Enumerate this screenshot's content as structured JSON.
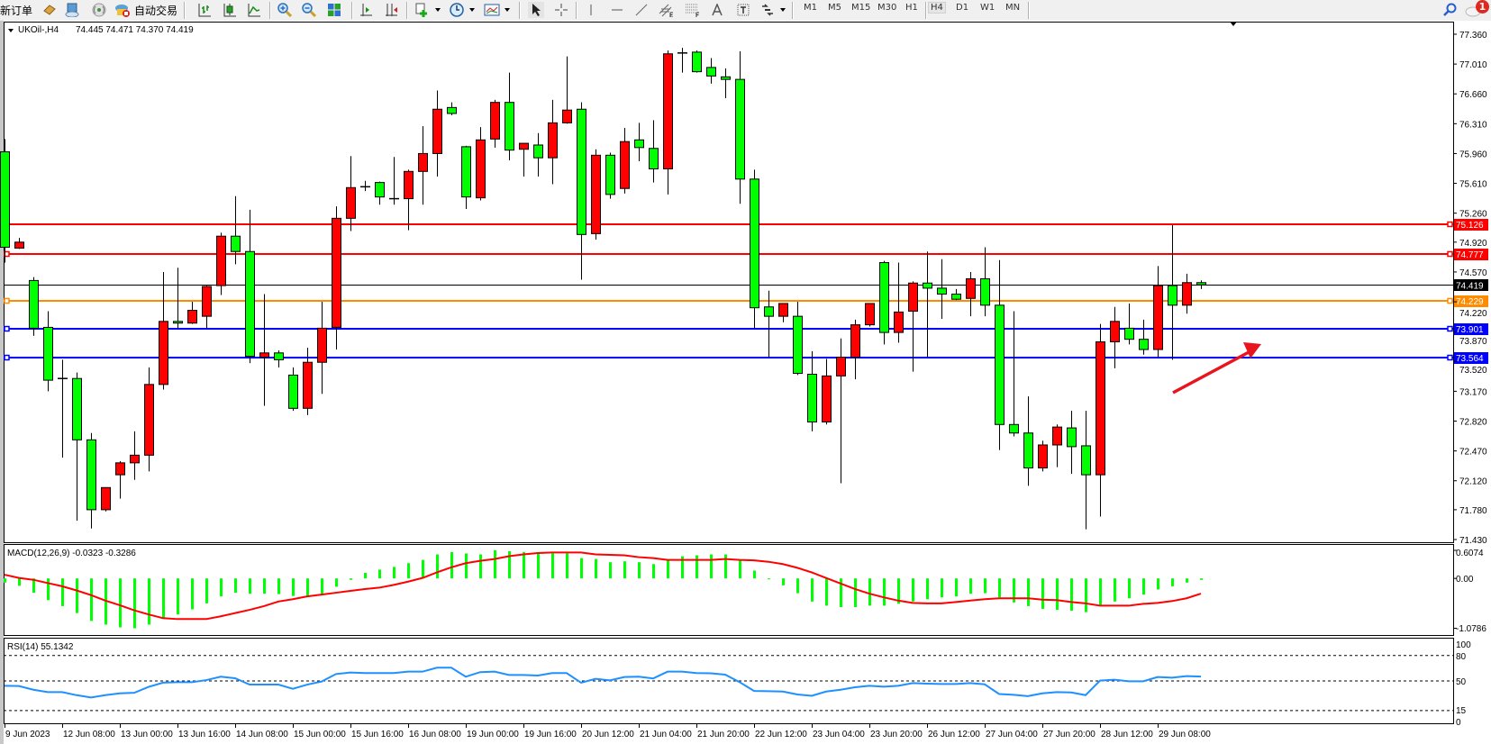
{
  "toolbar": {
    "new_order": "新订单",
    "auto_trade": "自动交易",
    "timeframes": [
      "M1",
      "M5",
      "M15",
      "M30",
      "H1",
      "H4",
      "D1",
      "W1",
      "MN"
    ],
    "active_timeframe": "H4",
    "notification_count": "1",
    "icons": [
      "book-icon",
      "market-watch-icon",
      "signals-icon",
      "auto-trade-icon",
      "bar-chart-icon",
      "candlestick-icon",
      "line-chart-icon",
      "zoom-in-icon",
      "zoom-out-icon",
      "tile-windows-icon",
      "auto-scroll-icon",
      "chart-shift-icon",
      "indicators-icon",
      "period-clock-icon",
      "templates-icon",
      "cursor-icon",
      "crosshair-icon",
      "vertical-line-icon",
      "horizontal-line-icon",
      "trendline-icon",
      "equidistant-channel-icon",
      "fibonacci-icon",
      "text-icon",
      "text-label-icon",
      "arrows-icon",
      "search-icon",
      "chat-icon"
    ]
  },
  "chart": {
    "symbol": "UKOil-,H4",
    "ohlc_readout": "74.445 74.471 74.370 74.419",
    "bid": "74.419",
    "levels": [
      {
        "price": "75.126",
        "color": "#ff0000"
      },
      {
        "price": "74.777",
        "color": "#ff0000"
      },
      {
        "price": "74.229",
        "color": "#ff8c00"
      },
      {
        "price": "73.901",
        "color": "#0000ff"
      },
      {
        "price": "73.564",
        "color": "#0000ff"
      }
    ],
    "annotation_arrow_color": "#e8141e"
  },
  "chart_data": {
    "type": "candlestick",
    "bull_color": "#ff0000",
    "bear_color": "#00ff00",
    "ylim": [
      71.43,
      77.36
    ],
    "price_ticks": [
      "77.360",
      "77.010",
      "76.660",
      "76.310",
      "75.960",
      "75.610",
      "75.260",
      "74.920",
      "74.570",
      "74.220",
      "73.870",
      "73.520",
      "73.170",
      "72.820",
      "72.470",
      "72.120",
      "71.780",
      "71.430"
    ],
    "time_labels": [
      "9 Jun 2023",
      "12 Jun 08:00",
      "13 Jun 00:00",
      "13 Jun 16:00",
      "14 Jun 08:00",
      "15 Jun 00:00",
      "15 Jun 16:00",
      "16 Jun 08:00",
      "19 Jun 00:00",
      "19 Jun 16:00",
      "20 Jun 12:00",
      "21 Jun 04:00",
      "21 Jun 20:00",
      "22 Jun 12:00",
      "23 Jun 04:00",
      "23 Jun 20:00",
      "26 Jun 12:00",
      "27 Jun 04:00",
      "27 Jun 20:00",
      "28 Jun 12:00",
      "29 Jun 08:00"
    ],
    "ohlc": [
      [
        75.98,
        76.13,
        74.68,
        74.86
      ],
      [
        74.85,
        74.97,
        74.84,
        74.92
      ],
      [
        74.47,
        74.51,
        73.82,
        73.91
      ],
      [
        73.92,
        74.11,
        73.17,
        73.3
      ],
      [
        73.32,
        73.54,
        72.39,
        73.31
      ],
      [
        73.32,
        73.39,
        71.65,
        72.6
      ],
      [
        72.6,
        72.68,
        71.56,
        71.78
      ],
      [
        71.78,
        72.04,
        71.76,
        72.04
      ],
      [
        72.19,
        72.35,
        71.91,
        72.33
      ],
      [
        72.33,
        72.7,
        72.13,
        72.42
      ],
      [
        72.42,
        73.45,
        72.23,
        73.25
      ],
      [
        73.25,
        74.57,
        73.19,
        73.99
      ],
      [
        73.99,
        74.62,
        73.91,
        73.97
      ],
      [
        73.97,
        74.22,
        73.96,
        74.12
      ],
      [
        74.05,
        74.42,
        73.91,
        74.4
      ],
      [
        74.41,
        75.03,
        74.3,
        74.99
      ],
      [
        74.99,
        75.46,
        74.66,
        74.81
      ],
      [
        74.81,
        75.3,
        73.5,
        73.58
      ],
      [
        73.57,
        74.31,
        73.0,
        73.62
      ],
      [
        73.62,
        73.65,
        73.45,
        73.54
      ],
      [
        73.36,
        73.45,
        72.94,
        72.97
      ],
      [
        72.97,
        73.68,
        72.89,
        73.51
      ],
      [
        73.51,
        74.22,
        73.14,
        73.91
      ],
      [
        73.92,
        75.34,
        73.66,
        75.2
      ],
      [
        75.2,
        75.93,
        75.05,
        75.56
      ],
      [
        75.57,
        75.64,
        75.52,
        75.57
      ],
      [
        75.62,
        75.63,
        75.36,
        75.45
      ],
      [
        75.43,
        75.92,
        75.36,
        75.43
      ],
      [
        75.43,
        75.77,
        75.06,
        75.75
      ],
      [
        75.75,
        76.28,
        75.36,
        75.96
      ],
      [
        75.96,
        76.7,
        75.69,
        76.48
      ],
      [
        76.5,
        76.56,
        76.41,
        76.43
      ],
      [
        76.04,
        76.05,
        75.31,
        75.45
      ],
      [
        75.44,
        76.27,
        75.41,
        76.12
      ],
      [
        76.13,
        76.59,
        76.03,
        76.56
      ],
      [
        76.56,
        76.91,
        75.88,
        76.0
      ],
      [
        76.01,
        76.08,
        75.69,
        76.08
      ],
      [
        76.06,
        76.2,
        75.69,
        75.91
      ],
      [
        75.91,
        76.59,
        75.6,
        76.32
      ],
      [
        76.32,
        77.1,
        76.31,
        76.47
      ],
      [
        76.48,
        76.56,
        74.48,
        75.01
      ],
      [
        75.02,
        76.01,
        74.95,
        75.94
      ],
      [
        75.94,
        75.97,
        75.43,
        75.48
      ],
      [
        75.55,
        76.26,
        75.49,
        76.1
      ],
      [
        76.12,
        76.32,
        75.87,
        76.03
      ],
      [
        76.02,
        76.35,
        75.62,
        75.78
      ],
      [
        75.78,
        77.17,
        75.48,
        77.13
      ],
      [
        77.13,
        77.2,
        76.91,
        77.14
      ],
      [
        77.15,
        77.17,
        76.91,
        76.92
      ],
      [
        76.97,
        77.08,
        76.78,
        76.87
      ],
      [
        76.86,
        76.96,
        76.61,
        76.83
      ],
      [
        76.83,
        77.16,
        75.37,
        75.66
      ],
      [
        75.66,
        75.77,
        73.91,
        74.15
      ],
      [
        74.16,
        74.35,
        73.57,
        74.05
      ],
      [
        74.05,
        74.2,
        73.98,
        74.2
      ],
      [
        74.05,
        74.22,
        73.36,
        73.38
      ],
      [
        73.37,
        73.64,
        72.7,
        72.81
      ],
      [
        72.81,
        73.55,
        72.78,
        73.35
      ],
      [
        73.35,
        73.79,
        72.09,
        73.57
      ],
      [
        73.57,
        74.01,
        73.31,
        73.95
      ],
      [
        73.95,
        74.2,
        73.93,
        74.2
      ],
      [
        74.68,
        74.7,
        73.72,
        73.86
      ],
      [
        73.86,
        74.68,
        73.74,
        74.1
      ],
      [
        74.11,
        74.46,
        73.4,
        74.44
      ],
      [
        74.44,
        74.81,
        73.57,
        74.38
      ],
      [
        74.38,
        74.72,
        74.02,
        74.31
      ],
      [
        74.31,
        74.37,
        74.24,
        74.25
      ],
      [
        74.26,
        74.57,
        74.05,
        74.49
      ],
      [
        74.49,
        74.86,
        74.05,
        74.18
      ],
      [
        74.18,
        74.71,
        72.48,
        72.78
      ],
      [
        72.78,
        74.11,
        72.64,
        72.68
      ],
      [
        72.68,
        73.11,
        72.06,
        72.27
      ],
      [
        72.27,
        72.59,
        72.23,
        72.54
      ],
      [
        72.54,
        72.78,
        72.28,
        72.75
      ],
      [
        72.74,
        72.94,
        72.2,
        72.52
      ],
      [
        72.53,
        72.94,
        71.55,
        72.19
      ],
      [
        72.19,
        73.96,
        71.7,
        73.75
      ],
      [
        73.75,
        74.16,
        73.44,
        73.99
      ],
      [
        73.91,
        74.2,
        73.72,
        73.78
      ],
      [
        73.78,
        74.01,
        73.6,
        73.66
      ],
      [
        73.66,
        74.64,
        73.57,
        74.41
      ],
      [
        74.41,
        75.12,
        73.54,
        74.18
      ],
      [
        74.18,
        74.55,
        74.08,
        74.445
      ],
      [
        74.445,
        74.471,
        74.37,
        74.419
      ]
    ],
    "macd": {
      "label": "MACD(12,26,9) -0.0323 -0.3286",
      "ylim": [
        -1.0786,
        0.6074
      ],
      "ticks": [
        "0.6074",
        "0.00",
        "-1.0786"
      ],
      "histogram_color": "#00ff00",
      "signal_color": "#ff0000",
      "histogram": [
        -0.09,
        -0.16,
        -0.31,
        -0.47,
        -0.6,
        -0.75,
        -0.92,
        -1.0,
        -1.06,
        -1.0786,
        -1.0,
        -0.87,
        -0.78,
        -0.67,
        -0.54,
        -0.39,
        -0.31,
        -0.33,
        -0.33,
        -0.34,
        -0.38,
        -0.38,
        -0.34,
        -0.18,
        -0.03,
        0.12,
        0.19,
        0.25,
        0.33,
        0.4,
        0.52,
        0.57,
        0.54,
        0.52,
        0.6074,
        0.59,
        0.57,
        0.56,
        0.54,
        0.54,
        0.44,
        0.42,
        0.35,
        0.37,
        0.35,
        0.31,
        0.4,
        0.48,
        0.5,
        0.52,
        0.52,
        0.4,
        0.17,
        -0.02,
        -0.15,
        -0.32,
        -0.5,
        -0.59,
        -0.62,
        -0.62,
        -0.59,
        -0.59,
        -0.55,
        -0.5,
        -0.45,
        -0.41,
        -0.39,
        -0.33,
        -0.32,
        -0.41,
        -0.52,
        -0.6,
        -0.66,
        -0.68,
        -0.7,
        -0.73,
        -0.57,
        -0.5,
        -0.43,
        -0.35,
        -0.24,
        -0.17,
        -0.09,
        -0.0323
      ],
      "signal": [
        0.08,
        0.01,
        -0.03,
        -0.1,
        -0.17,
        -0.26,
        -0.36,
        -0.48,
        -0.58,
        -0.69,
        -0.78,
        -0.86,
        -0.88,
        -0.88,
        -0.88,
        -0.82,
        -0.75,
        -0.68,
        -0.6,
        -0.5,
        -0.45,
        -0.39,
        -0.35,
        -0.31,
        -0.27,
        -0.23,
        -0.2,
        -0.14,
        -0.07,
        0.01,
        0.13,
        0.24,
        0.33,
        0.38,
        0.42,
        0.48,
        0.52,
        0.55,
        0.56,
        0.56,
        0.56,
        0.52,
        0.51,
        0.5,
        0.46,
        0.44,
        0.4,
        0.4,
        0.4,
        0.4,
        0.42,
        0.4,
        0.39,
        0.36,
        0.31,
        0.23,
        0.13,
        0.01,
        -0.11,
        -0.23,
        -0.33,
        -0.41,
        -0.48,
        -0.53,
        -0.54,
        -0.54,
        -0.51,
        -0.48,
        -0.45,
        -0.43,
        -0.43,
        -0.43,
        -0.46,
        -0.47,
        -0.51,
        -0.54,
        -0.59,
        -0.59,
        -0.59,
        -0.55,
        -0.53,
        -0.49,
        -0.43,
        -0.3286
      ]
    },
    "rsi": {
      "label": "RSI(14) 55.1342",
      "ylim": [
        0,
        100
      ],
      "ticks": [
        "100",
        "80",
        "50",
        "15",
        "0"
      ],
      "levels": [
        80,
        50,
        15
      ],
      "color": "#1e90ff",
      "values": [
        44.3,
        44.0,
        39.6,
        36.8,
        36.8,
        33.2,
        30.4,
        33.2,
        35.4,
        36.0,
        43.0,
        48.0,
        48.6,
        48.6,
        51.0,
        55.0,
        53.2,
        45.7,
        45.7,
        45.7,
        40.7,
        45.7,
        49.3,
        58.2,
        60.0,
        59.3,
        59.3,
        59.3,
        61.0,
        61.0,
        65.7,
        65.7,
        55.0,
        60.4,
        61.0,
        57.1,
        57.1,
        56.4,
        59.3,
        59.3,
        47.9,
        52.5,
        50.7,
        54.6,
        55.0,
        52.9,
        61.0,
        61.0,
        59.3,
        59.0,
        57.5,
        48.6,
        38.2,
        37.9,
        37.5,
        34.0,
        32.5,
        37.5,
        39.6,
        42.5,
        44.3,
        43.2,
        44.3,
        47.5,
        46.8,
        46.4,
        46.4,
        47.5,
        46.0,
        34.6,
        33.6,
        32.1,
        35.4,
        36.8,
        36.4,
        33.2,
        50.4,
        51.4,
        49.6,
        49.6,
        54.6,
        53.9,
        55.7,
        55.13
      ]
    }
  }
}
